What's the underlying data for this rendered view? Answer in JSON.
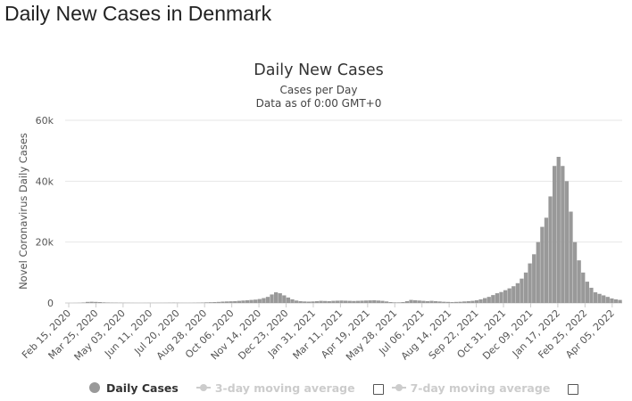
{
  "page": {
    "heading": "Daily New Cases in Denmark"
  },
  "chart_data": {
    "type": "bar",
    "title": "Daily New Cases",
    "subtitle": "Cases per Day",
    "subtitle2": "Data as of 0:00 GMT+0",
    "ylabel": "Novel Coronavirus Daily Cases",
    "xlabel": "",
    "ylim": [
      0,
      60000
    ],
    "yticks": [
      0,
      20000,
      40000,
      60000
    ],
    "ytick_labels": [
      "0",
      "20k",
      "40k",
      "60k"
    ],
    "grid": true,
    "x_start": "2020-02-15",
    "x_end": "2022-04-27",
    "xtick_labels": [
      "Feb 15, 2020",
      "Mar 25, 2020",
      "May 03, 2020",
      "Jun 11, 2020",
      "Jul 20, 2020",
      "Aug 28, 2020",
      "Oct 06, 2020",
      "Nov 14, 2020",
      "Dec 23, 2020",
      "Jan 31, 2021",
      "Mar 11, 2021",
      "Apr 19, 2021",
      "May 28, 2021",
      "Jul 06, 2021",
      "Aug 14, 2021",
      "Sep 22, 2021",
      "Oct 31, 2021",
      "Dec 09, 2021",
      "Jan 17, 2022",
      "Feb 25, 2022",
      "Apr 05, 2022"
    ],
    "series": [
      {
        "name": "Daily Cases",
        "color": "#999999",
        "unit": "cases per day (weekly averages)",
        "values": [
          0,
          5,
          20,
          50,
          150,
          350,
          400,
          350,
          300,
          200,
          150,
          120,
          100,
          80,
          60,
          50,
          40,
          30,
          30,
          40,
          50,
          40,
          40,
          50,
          60,
          80,
          100,
          80,
          60,
          50,
          60,
          80,
          100,
          150,
          200,
          250,
          300,
          350,
          450,
          500,
          550,
          600,
          700,
          800,
          900,
          1000,
          1100,
          1300,
          1600,
          2000,
          2800,
          3500,
          3200,
          2500,
          1800,
          1200,
          800,
          600,
          500,
          450,
          500,
          600,
          700,
          650,
          600,
          700,
          750,
          800,
          750,
          700,
          650,
          700,
          750,
          800,
          850,
          900,
          800,
          700,
          500,
          300,
          200,
          200,
          300,
          600,
          1000,
          900,
          800,
          700,
          600,
          700,
          600,
          500,
          400,
          350,
          300,
          350,
          400,
          500,
          600,
          700,
          900,
          1200,
          1600,
          2000,
          2600,
          3200,
          3600,
          4200,
          4800,
          5500,
          6500,
          8000,
          10000,
          13000,
          16000,
          20000,
          25000,
          28000,
          35000,
          45000,
          48000,
          45000,
          40000,
          30000,
          20000,
          14000,
          10000,
          7000,
          5000,
          3500,
          3000,
          2500,
          2000,
          1500,
          1200,
          1000
        ]
      }
    ],
    "legend": [
      {
        "label": "Daily Cases",
        "color": "#999999",
        "enabled": true
      },
      {
        "label": "3-day moving average",
        "color": "#cccccc",
        "enabled": false
      },
      {
        "label": "7-day moving average",
        "color": "#cccccc",
        "enabled": false
      }
    ]
  }
}
